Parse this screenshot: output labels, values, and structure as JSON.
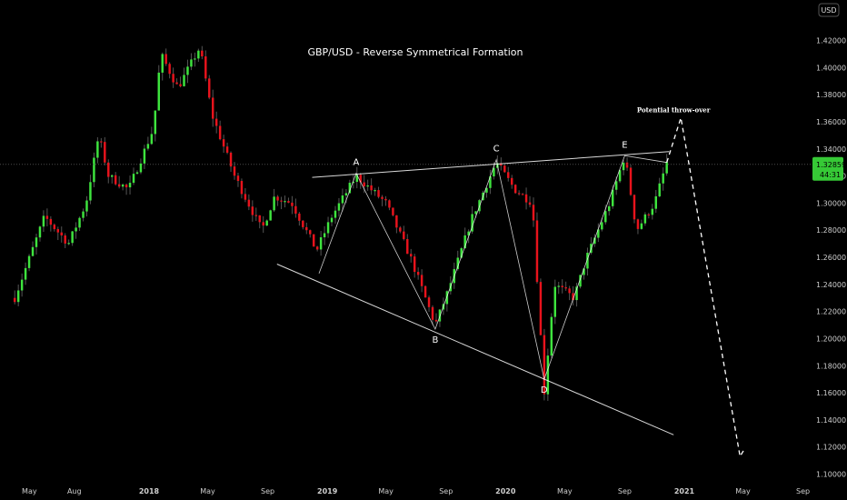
{
  "chart_data": {
    "type": "candlestick",
    "title": "GBP/USD - Reverse Symmetrical Formation",
    "currency": "USD",
    "colors": {
      "background": "#000000",
      "up": "#3ee43e",
      "down": "#e8131c",
      "lines": "#ffffff",
      "price_label_bg": "#36c936"
    },
    "ylim": [
      1.095,
      1.44
    ],
    "y_ticks": [
      "1.42000",
      "1.40000",
      "1.38000",
      "1.36000",
      "1.34000",
      "1.32000",
      "1.30000",
      "1.28000",
      "1.26000",
      "1.24000",
      "1.22000",
      "1.20000",
      "1.18000",
      "1.16000",
      "1.14000",
      "1.12000",
      "1.10000"
    ],
    "x_ticks": [
      "May",
      "Aug",
      "2018",
      "May",
      "Sep",
      "2019",
      "May",
      "Sep",
      "2020",
      "May",
      "Sep",
      "2021",
      "May",
      "Sep"
    ],
    "x_tick_dates": [
      "2017-05-01",
      "2017-08-01",
      "2018-01-01",
      "2018-05-01",
      "2018-09-01",
      "2019-01-01",
      "2019-05-01",
      "2019-09-01",
      "2020-01-01",
      "2020-05-01",
      "2020-09-01",
      "2021-01-01",
      "2021-05-01",
      "2021-09-01"
    ],
    "current_price": {
      "value": 1.32859,
      "label": "1.32859",
      "timer": "44:31"
    },
    "candle_count": 182,
    "close_path": [
      [
        "2017-04-01",
        1.23
      ],
      [
        "2017-06-01",
        1.29
      ],
      [
        "2017-07-20",
        1.27
      ],
      [
        "2017-08-25",
        1.3
      ],
      [
        "2017-09-20",
        1.35
      ],
      [
        "2017-10-10",
        1.32
      ],
      [
        "2017-11-20",
        1.31
      ],
      [
        "2018-01-10",
        1.355
      ],
      [
        "2018-01-25",
        1.41
      ],
      [
        "2018-03-01",
        1.385
      ],
      [
        "2018-04-15",
        1.415
      ],
      [
        "2018-05-10",
        1.365
      ],
      [
        "2018-06-25",
        1.32
      ],
      [
        "2018-08-20",
        1.28
      ],
      [
        "2018-09-15",
        1.305
      ],
      [
        "2018-10-20",
        1.3
      ],
      [
        "2018-12-10",
        1.265
      ],
      [
        "2019-01-10",
        1.29
      ],
      [
        "2019-03-01",
        1.32
      ],
      [
        "2019-05-01",
        1.3
      ],
      [
        "2019-06-20",
        1.26
      ],
      [
        "2019-08-10",
        1.21
      ],
      [
        "2019-09-05",
        1.235
      ],
      [
        "2019-10-25",
        1.29
      ],
      [
        "2019-12-13",
        1.33
      ],
      [
        "2020-01-20",
        1.31
      ],
      [
        "2020-02-25",
        1.3
      ],
      [
        "2020-03-20",
        1.16
      ],
      [
        "2020-04-10",
        1.24
      ],
      [
        "2020-05-20",
        1.23
      ],
      [
        "2020-06-15",
        1.26
      ],
      [
        "2020-08-01",
        1.3
      ],
      [
        "2020-09-01",
        1.335
      ],
      [
        "2020-09-25",
        1.28
      ],
      [
        "2020-11-01",
        1.3
      ],
      [
        "2020-11-26",
        1.33
      ]
    ],
    "pattern_lines": {
      "upper_trendline": [
        [
          "2018-12-01",
          1.319
        ],
        [
          "2020-12-01",
          1.338
        ]
      ],
      "lower_trendline": [
        [
          "2018-09-20",
          1.255
        ],
        [
          "2020-12-10",
          1.129
        ]
      ],
      "zigzag": [
        [
          "2018-12-15",
          1.248
        ],
        [
          "2019-03-01",
          1.322
        ],
        [
          "2019-08-10",
          1.207
        ],
        [
          "2019-12-13",
          1.332
        ],
        [
          "2020-03-20",
          1.17
        ],
        [
          "2020-09-01",
          1.335
        ],
        [
          "2020-11-26",
          1.33
        ]
      ],
      "throw_over_projection": [
        [
          "2020-11-26",
          1.33
        ],
        [
          "2020-12-25",
          1.363
        ],
        [
          "2021-04-25",
          1.113
        ],
        [
          "2021-05-05",
          1.119
        ]
      ]
    },
    "point_labels": [
      {
        "text": "A",
        "x": "2019-03-01",
        "y": 1.328
      },
      {
        "text": "B",
        "x": "2019-08-10",
        "y": 1.197
      },
      {
        "text": "C",
        "x": "2019-12-13",
        "y": 1.338
      },
      {
        "text": "D",
        "x": "2020-03-20",
        "y": 1.16
      },
      {
        "text": "E",
        "x": "2020-09-01",
        "y": 1.341
      }
    ],
    "annotations": [
      {
        "text": "Potential throw-over",
        "x": "2020-12-10",
        "y": 1.367
      }
    ],
    "grid": false
  }
}
